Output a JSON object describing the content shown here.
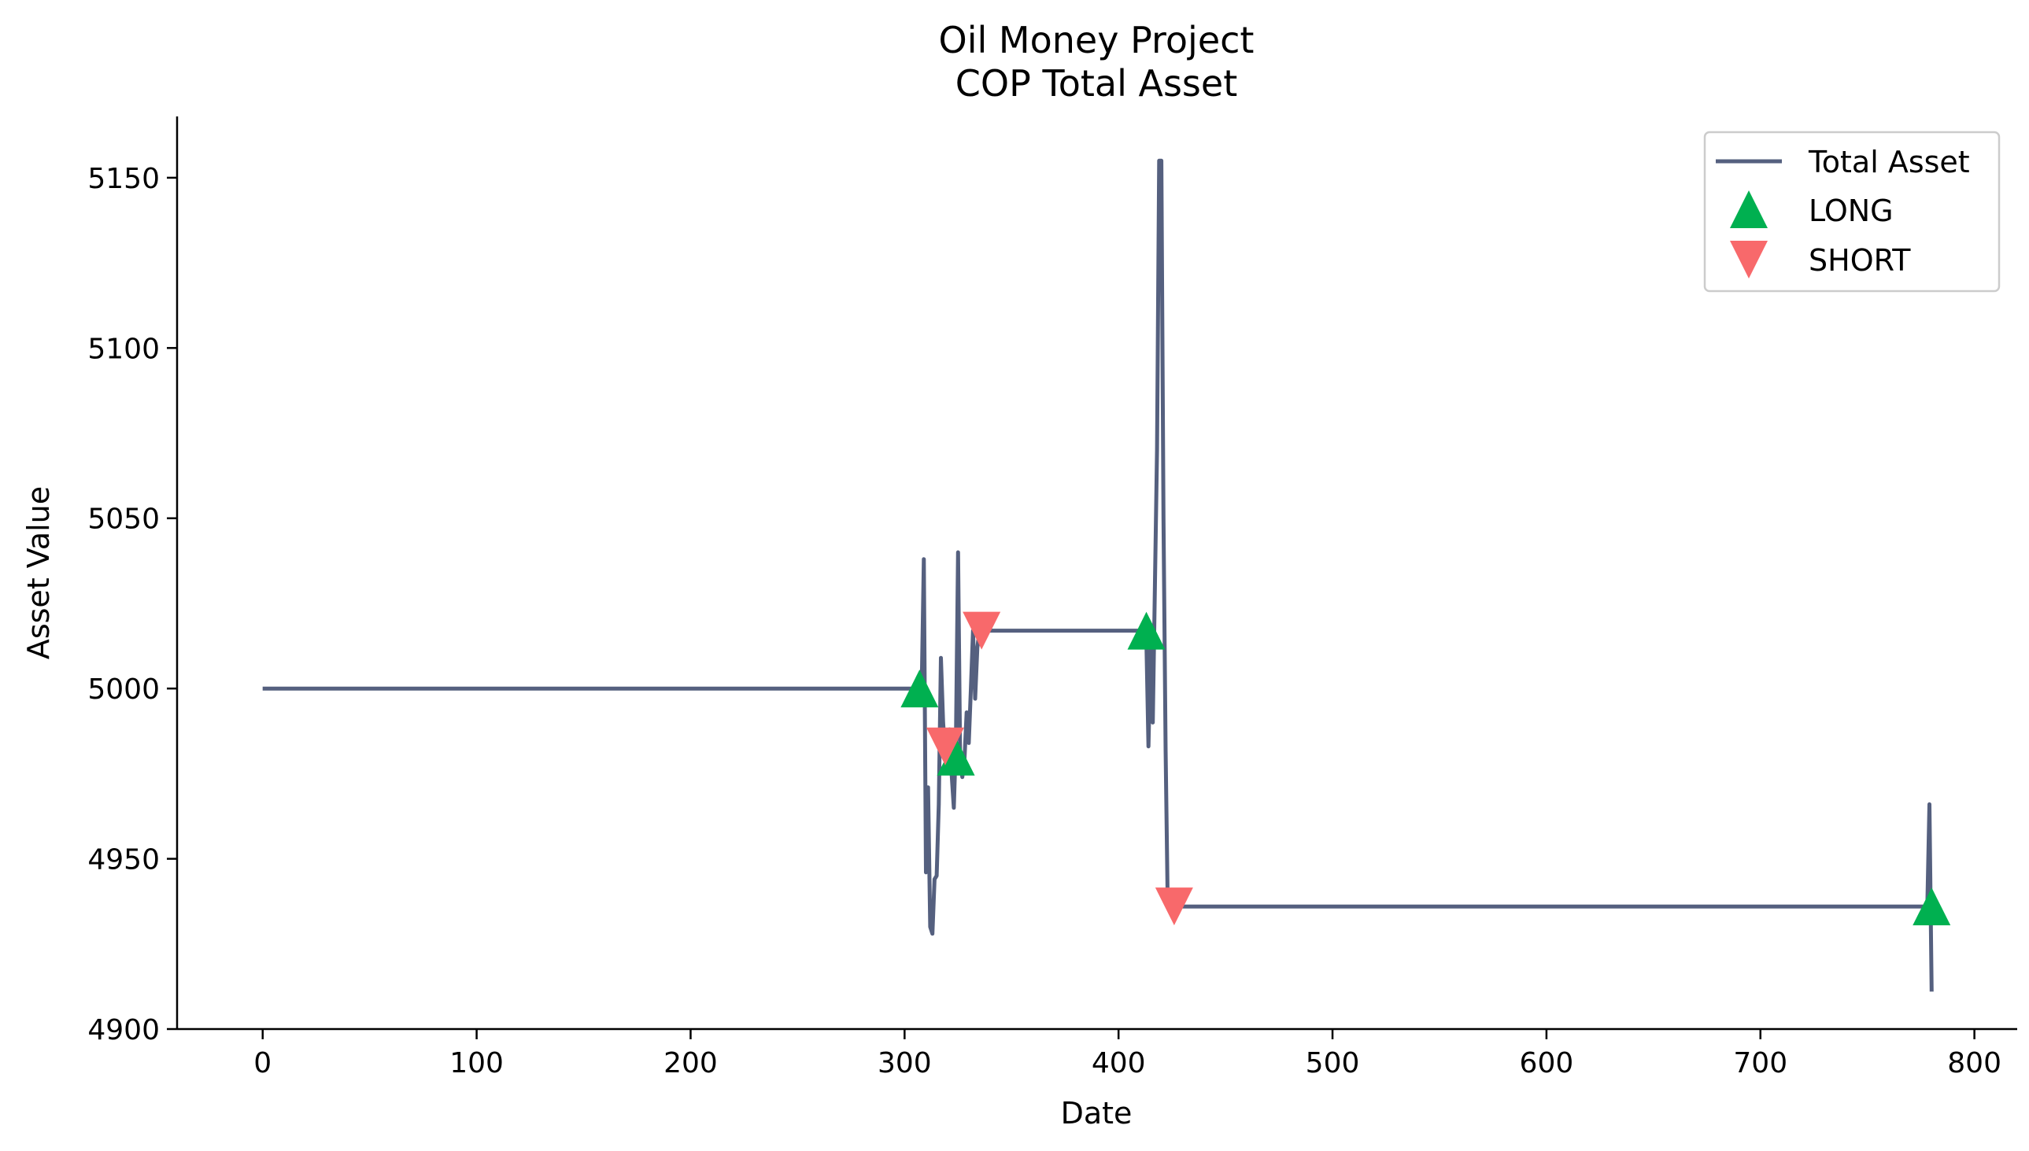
{
  "chart_data": {
    "type": "line",
    "title": "Oil Money Project",
    "subtitle": "COP Total Asset",
    "xlabel": "Date",
    "ylabel": "Asset Value",
    "xlim": [
      -40,
      820
    ],
    "ylim": [
      4900,
      5168
    ],
    "xticks": [
      0,
      100,
      200,
      300,
      400,
      500,
      600,
      700,
      800
    ],
    "yticks": [
      4900,
      4950,
      5000,
      5050,
      5100,
      5150
    ],
    "grid": false,
    "legend_position": "top-right",
    "series": [
      {
        "name": "Total Asset",
        "color": "#55607f",
        "x": [
          0,
          306,
          308,
          309,
          310,
          311,
          312,
          313,
          314,
          315,
          316,
          317,
          318,
          319,
          320,
          321,
          322,
          323,
          324,
          325,
          326,
          327,
          328,
          329,
          330,
          331,
          332,
          333,
          334,
          335,
          336,
          337,
          338,
          339,
          340,
          350,
          360,
          370,
          380,
          390,
          400,
          410,
          413,
          414,
          415,
          416,
          417,
          418,
          419,
          420,
          421,
          422,
          423,
          424,
          425,
          426,
          430,
          500,
          600,
          700,
          770,
          778,
          779,
          780
        ],
        "values": [
          5000,
          5000,
          5000,
          5038,
          4946,
          4971,
          4930,
          4928,
          4944,
          4945,
          4966,
          5009,
          4990,
          4981,
          4981,
          4988,
          4975,
          4965,
          4985,
          5040,
          4978,
          4974,
          4979,
          4993,
          4984,
          5000,
          5017,
          4997,
          5012,
          5017,
          5017,
          5017,
          5017,
          5017,
          5017,
          5017,
          5017,
          5017,
          5017,
          5017,
          5017,
          5017,
          5015,
          4983,
          5013,
          4990,
          5030,
          5070,
          5155,
          5155,
          5050,
          4982,
          4936,
          4936,
          4936,
          4936,
          4936,
          4936,
          4936,
          4936,
          4936,
          4936,
          4966,
          4911
        ]
      },
      {
        "name": "LONG",
        "marker": "triangle-up",
        "color": "#00b050",
        "x": [
          307,
          324,
          413,
          780
        ],
        "values": [
          5000,
          4980,
          5017,
          4936
        ]
      },
      {
        "name": "SHORT",
        "marker": "triangle-down",
        "color": "#f8696b",
        "x": [
          319,
          336,
          426
        ],
        "values": [
          4983,
          5017,
          4936
        ]
      }
    ]
  }
}
